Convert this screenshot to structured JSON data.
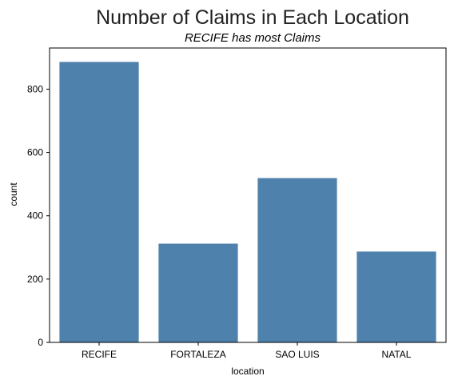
{
  "chart_data": {
    "type": "bar",
    "title": "Number of Claims in Each Location",
    "subtitle": "RECIFE has most Claims",
    "xlabel": "location",
    "ylabel": "count",
    "categories": [
      "RECIFE",
      "FORTALEZA",
      "SAO LUIS",
      "NATAL"
    ],
    "values": [
      886,
      312,
      519,
      287
    ],
    "ylim": [
      0,
      930
    ],
    "yticks": [
      0,
      200,
      400,
      600,
      800
    ],
    "grid": false,
    "bar_color": "#4e81ab"
  }
}
